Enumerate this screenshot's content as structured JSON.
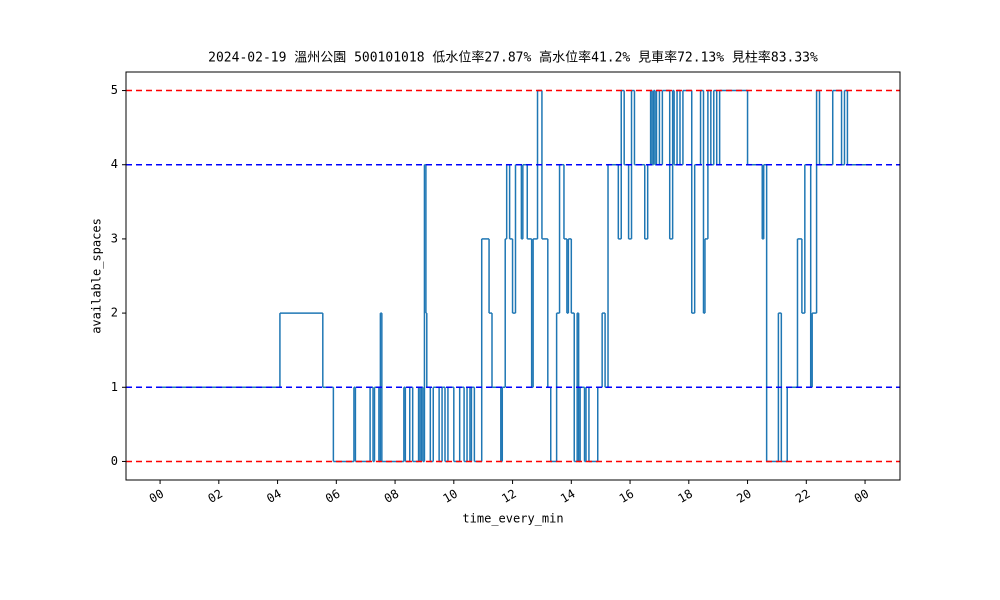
{
  "chart_data": {
    "type": "step",
    "title": "2024-02-19 溫州公園 500101018 低水位率27.87% 高水位率41.2% 見車率72.13% 見柱率83.33%",
    "x_label": "time_every_min",
    "y_label": "available_spaces",
    "x": [
      0,
      4.08,
      5.54,
      5.9,
      6.6,
      6.65,
      7.15,
      7.25,
      7.3,
      7.45,
      7.5,
      7.55,
      8.3,
      8.35,
      8.5,
      8.6,
      8.8,
      8.85,
      8.9,
      8.95,
      9.0,
      9.05,
      9.08,
      9.2,
      9.3,
      9.5,
      9.6,
      9.7,
      9.8,
      10.0,
      10.2,
      10.35,
      10.45,
      10.55,
      10.6,
      10.7,
      10.95,
      11.2,
      11.3,
      11.6,
      11.65,
      11.75,
      11.8,
      11.9,
      12.0,
      12.1,
      12.3,
      12.35,
      12.5,
      12.65,
      12.7,
      12.85,
      13.0,
      13.2,
      13.3,
      13.5,
      13.6,
      13.75,
      13.85,
      13.9,
      14.0,
      14.1,
      14.2,
      14.25,
      14.3,
      14.45,
      14.5,
      14.6,
      14.9,
      15.05,
      15.15,
      15.25,
      15.6,
      15.7,
      15.8,
      15.95,
      16.05,
      16.15,
      16.5,
      16.6,
      16.7,
      16.75,
      16.8,
      16.85,
      16.9,
      17.0,
      17.1,
      17.35,
      17.45,
      17.5,
      17.6,
      17.7,
      17.8,
      18.1,
      18.2,
      18.4,
      18.5,
      18.55,
      18.65,
      18.75,
      18.85,
      18.95,
      19.05,
      20.0,
      20.5,
      20.55,
      20.65,
      21.05,
      21.15,
      21.35,
      21.7,
      21.85,
      21.95,
      22.15,
      22.2,
      22.35,
      22.45,
      22.9,
      23.2,
      23.3,
      23.4,
      24.0
    ],
    "series": [
      {
        "color": "#1f77b4",
        "values": [
          1,
          2,
          1,
          0,
          1,
          0,
          1,
          0,
          1,
          0,
          2,
          0,
          1,
          0,
          1,
          0,
          1,
          0,
          1,
          0,
          4,
          2,
          1,
          0,
          1,
          0,
          1,
          0,
          1,
          0,
          1,
          0,
          1,
          0,
          1,
          0,
          3,
          2,
          1,
          0,
          1,
          3,
          4,
          3,
          2,
          4,
          3,
          4,
          3,
          1,
          3,
          5,
          3,
          1,
          0,
          2,
          4,
          3,
          2,
          3,
          2,
          0,
          2,
          0,
          1,
          0,
          1,
          0,
          1,
          2,
          1,
          4,
          3,
          5,
          4,
          3,
          5,
          4,
          3,
          4,
          5,
          4,
          5,
          4,
          5,
          4,
          5,
          3,
          5,
          4,
          5,
          4,
          5,
          2,
          4,
          5,
          2,
          3,
          5,
          4,
          5,
          4,
          5,
          4,
          3,
          4,
          0,
          2,
          0,
          1,
          3,
          2,
          4,
          1,
          2,
          5,
          4,
          5,
          4,
          5,
          4,
          4
        ]
      }
    ],
    "hlines": [
      {
        "y": 5,
        "color": "#ff0000"
      },
      {
        "y": 4,
        "color": "#0000ff"
      },
      {
        "y": 1,
        "color": "#0000ff"
      },
      {
        "y": 0,
        "color": "#ff0000"
      }
    ],
    "xlim": [
      -1.16,
      25.19
    ],
    "ylim": [
      -0.25,
      5.25
    ],
    "xticks": [
      {
        "value": 0,
        "label": "00"
      },
      {
        "value": 2,
        "label": "02"
      },
      {
        "value": 4,
        "label": "04"
      },
      {
        "value": 6,
        "label": "06"
      },
      {
        "value": 8,
        "label": "08"
      },
      10,
      12,
      14,
      16,
      18,
      20,
      22,
      {
        "value": 24,
        "label": "00"
      }
    ],
    "yticks": [
      0,
      1,
      2,
      3,
      4,
      5
    ]
  }
}
